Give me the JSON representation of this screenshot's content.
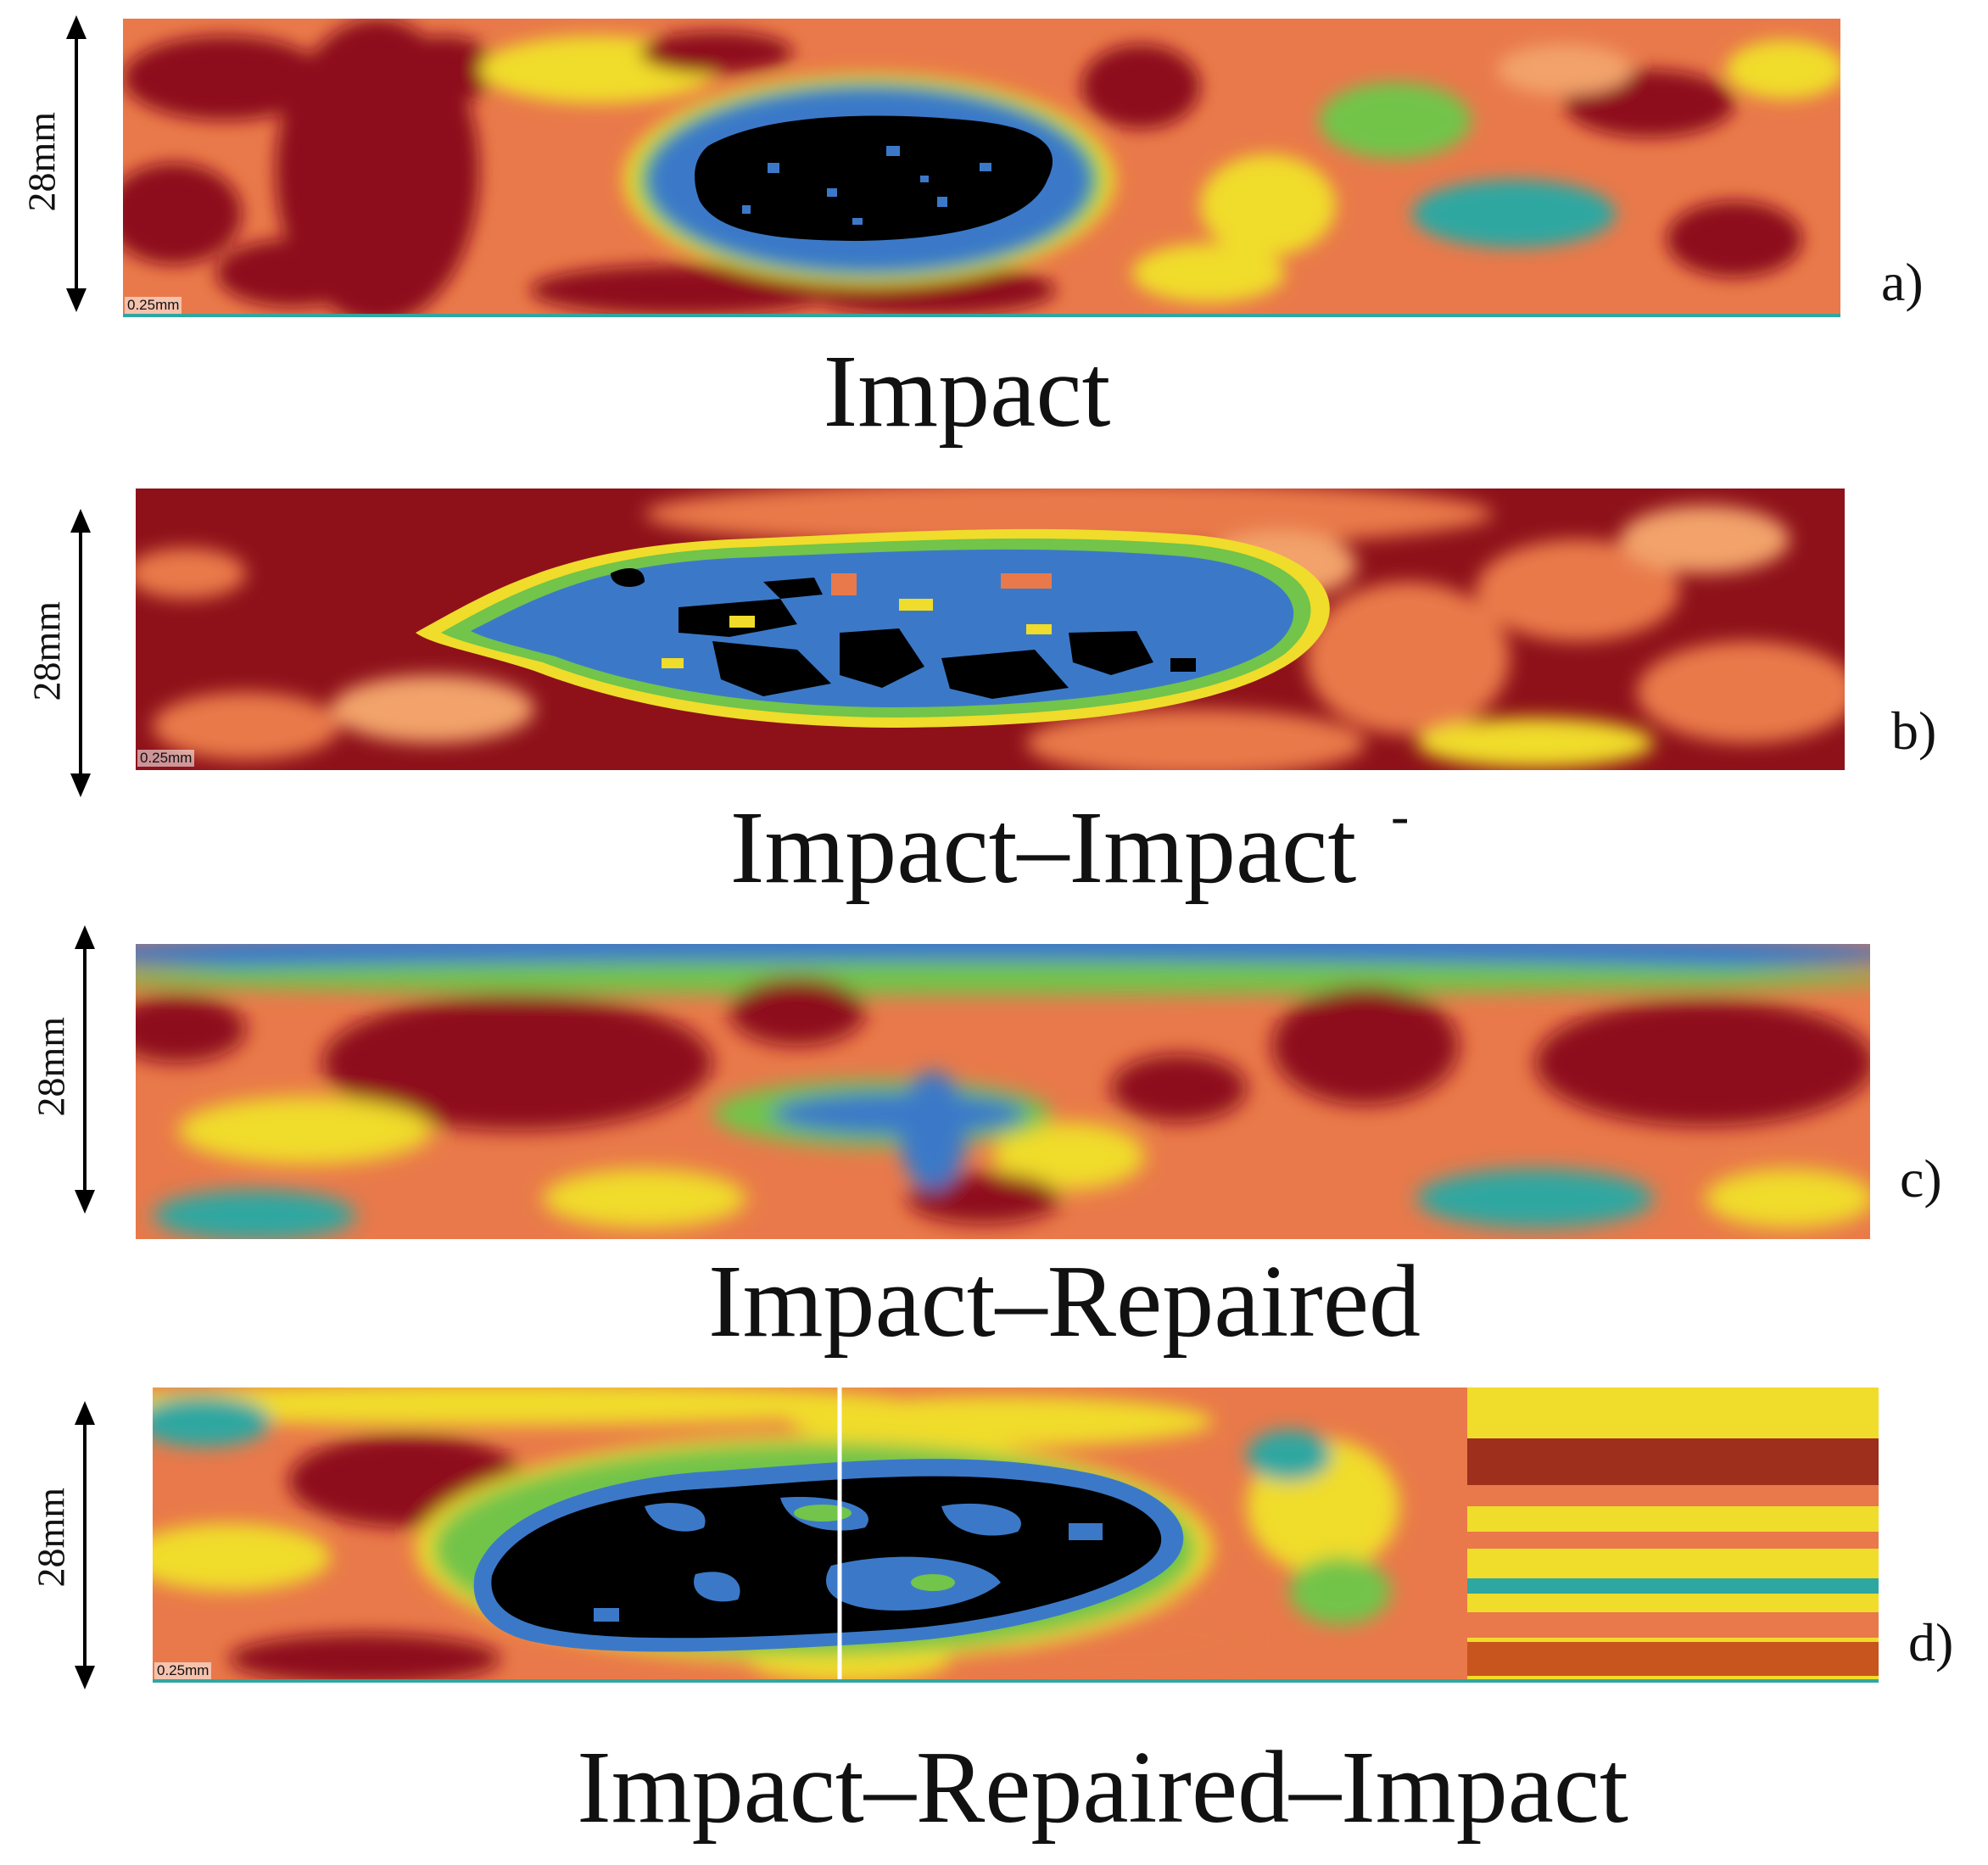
{
  "panels": [
    {
      "dimension": "28mm",
      "scale": "0.25mm",
      "letter": "a)",
      "caption": "Impact"
    },
    {
      "dimension": "28mm",
      "scale": "0.25mm",
      "letter": "b)",
      "caption": "Impact–Impact",
      "mark": "-"
    },
    {
      "dimension": "28mm",
      "letter": "c)",
      "caption": "Impact–Repaired"
    },
    {
      "dimension": "28mm",
      "scale": "0.25mm",
      "letter": "d)",
      "caption": "Impact–Repaired–Impact"
    }
  ],
  "colors": {
    "intact": "#8e111a",
    "orange": "#e9794a",
    "light_orange": "#f2a26a",
    "yellow": "#f0dc2a",
    "green": "#72c44a",
    "teal": "#2fa7a1",
    "blue": "#3b79c8",
    "dark": "#000000"
  }
}
